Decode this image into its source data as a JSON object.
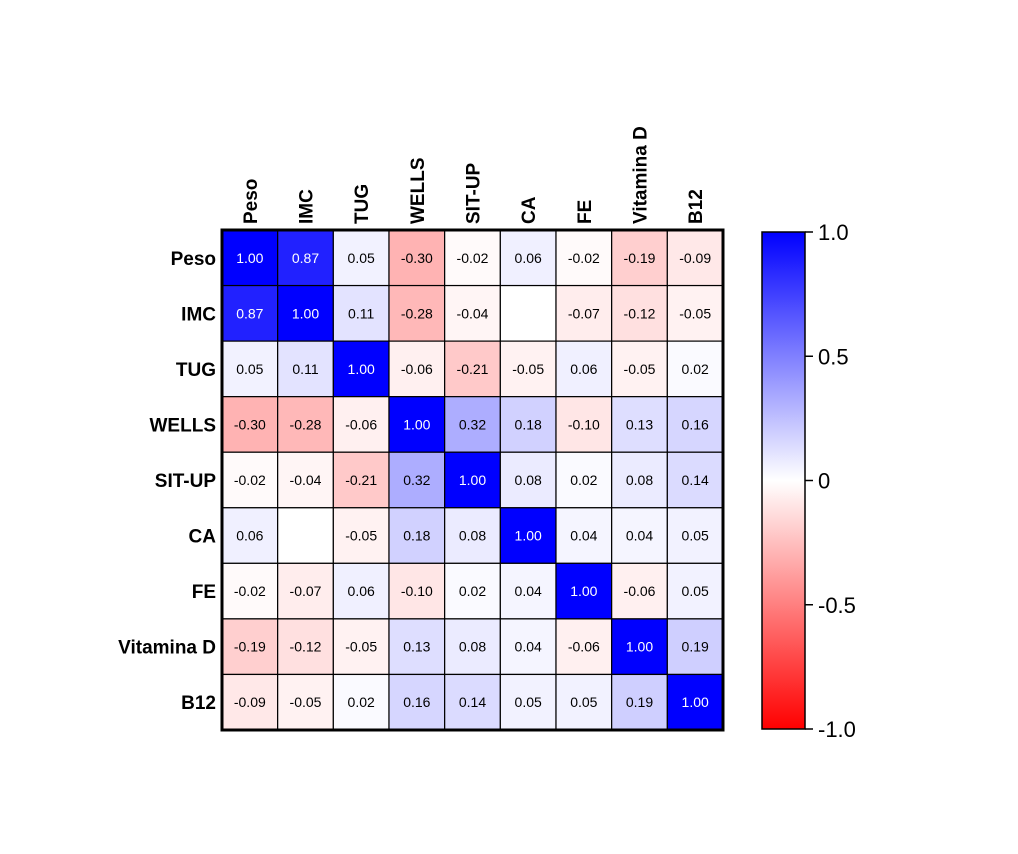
{
  "chart_data": {
    "type": "heatmap",
    "title": "",
    "xlabel": "",
    "ylabel": "",
    "variables": [
      "Peso",
      "IMC",
      "TUG",
      "WELLS",
      "SIT-UP",
      "CA",
      "FE",
      "Vitamina D",
      "B12"
    ],
    "values": [
      [
        1.0,
        0.87,
        0.05,
        -0.3,
        -0.02,
        0.06,
        -0.02,
        -0.19,
        -0.09
      ],
      [
        0.87,
        1.0,
        0.11,
        -0.28,
        -0.04,
        null,
        -0.07,
        -0.12,
        -0.05
      ],
      [
        0.05,
        0.11,
        1.0,
        -0.06,
        -0.21,
        -0.05,
        0.06,
        -0.05,
        0.02
      ],
      [
        -0.3,
        -0.28,
        -0.06,
        1.0,
        0.32,
        0.18,
        -0.1,
        0.13,
        0.16
      ],
      [
        -0.02,
        -0.04,
        -0.21,
        0.32,
        1.0,
        0.08,
        0.02,
        0.08,
        0.14
      ],
      [
        0.06,
        null,
        -0.05,
        0.18,
        0.08,
        1.0,
        0.04,
        0.04,
        0.05
      ],
      [
        -0.02,
        -0.07,
        0.06,
        -0.1,
        0.02,
        0.04,
        1.0,
        -0.06,
        0.05
      ],
      [
        -0.19,
        -0.12,
        -0.05,
        0.13,
        0.08,
        0.04,
        -0.06,
        1.0,
        0.19
      ],
      [
        -0.09,
        -0.05,
        0.02,
        0.16,
        0.14,
        0.05,
        0.05,
        0.19,
        1.0
      ]
    ],
    "colorbar": {
      "range": [
        -1.0,
        1.0
      ],
      "ticks": [
        1.0,
        0.5,
        0,
        -0.5,
        -1.0
      ],
      "tick_labels": [
        "1.0",
        "0.5",
        "0",
        "-0.5",
        "-1.0"
      ],
      "colors": {
        "negative": "#ff0000",
        "zero": "#ffffff",
        "positive": "#0000ff"
      }
    },
    "legend": "right"
  }
}
